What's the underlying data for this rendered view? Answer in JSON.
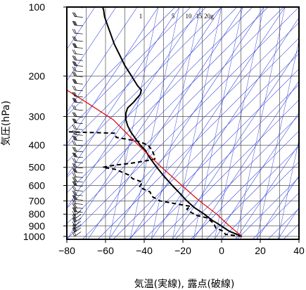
{
  "chart_data": {
    "type": "line",
    "xlabel": "気温(実線), 露点(破線)",
    "ylabel": "気圧(hPa)",
    "xlim": [
      -80,
      40
    ],
    "ylim": [
      1030,
      100
    ],
    "y_scale": "log",
    "grid": true,
    "x_ticks": [
      "−80",
      "−60",
      "−40",
      "−20",
      "0",
      "20",
      "40"
    ],
    "x_tick_values": [
      -80,
      -60,
      -40,
      -20,
      0,
      20,
      40
    ],
    "y_ticks": [
      "100",
      "200",
      "300",
      "400",
      "500",
      "600",
      "700",
      "800",
      "900",
      "1000"
    ],
    "y_tick_values": [
      100,
      200,
      300,
      400,
      500,
      600,
      700,
      800,
      900,
      1000
    ],
    "mixing_ratio_labels": [
      "1",
      "5",
      "10",
      "15",
      "20g"
    ],
    "colors": {
      "temperature": "#000000",
      "dewpoint": "#000000",
      "parcel": "#e00000",
      "adiabats": "#3344dd",
      "grid": "#333333",
      "wind_barbs": "#000000"
    },
    "series": [
      {
        "name": "気温",
        "style": "solid",
        "points": [
          [
            10.5,
            1000
          ],
          [
            4.0,
            950
          ],
          [
            1.5,
            920
          ],
          [
            -2.0,
            880
          ],
          [
            -5.0,
            850
          ],
          [
            -9.0,
            800
          ],
          [
            -14.0,
            750
          ],
          [
            -18.0,
            700
          ],
          [
            -21.5,
            650
          ],
          [
            -25.5,
            600
          ],
          [
            -29.5,
            550
          ],
          [
            -33.5,
            500
          ],
          [
            -37.5,
            450
          ],
          [
            -39.5,
            420
          ],
          [
            -42.0,
            400
          ],
          [
            -45.0,
            370
          ],
          [
            -47.0,
            350
          ],
          [
            -48.5,
            330
          ],
          [
            -49.5,
            310
          ],
          [
            -49.5,
            290
          ],
          [
            -48.5,
            275
          ],
          [
            -45.5,
            260
          ],
          [
            -42.0,
            240
          ],
          [
            -41.5,
            230
          ],
          [
            -43.5,
            220
          ],
          [
            -46.5,
            200
          ],
          [
            -50.0,
            180
          ],
          [
            -53.0,
            160
          ],
          [
            -55.5,
            145
          ],
          [
            -57.5,
            130
          ],
          [
            -59.0,
            120
          ],
          [
            -60.5,
            110
          ],
          [
            -61.0,
            103
          ],
          [
            -61.5,
            100
          ]
        ]
      },
      {
        "name": "露点",
        "style": "dashed",
        "points": [
          [
            10.5,
            1000
          ],
          [
            2.0,
            980
          ],
          [
            1.0,
            950
          ],
          [
            -3.0,
            920
          ],
          [
            -4.0,
            880
          ],
          [
            -6.0,
            850
          ],
          [
            -7.5,
            830
          ],
          [
            -13.0,
            810
          ],
          [
            -16.5,
            780
          ],
          [
            -18.0,
            760
          ],
          [
            -16.0,
            740
          ],
          [
            -24.0,
            720
          ],
          [
            -32.0,
            700
          ],
          [
            -36.0,
            670
          ],
          [
            -37.0,
            640
          ],
          [
            -42.5,
            610
          ],
          [
            -41.0,
            580
          ],
          [
            -46.0,
            560
          ],
          [
            -48.0,
            540
          ],
          [
            -55.0,
            510
          ],
          [
            -61.5,
            500
          ],
          [
            -56.0,
            490
          ],
          [
            -47.0,
            480
          ],
          [
            -40.0,
            470
          ],
          [
            -34.5,
            460
          ],
          [
            -35.0,
            440
          ],
          [
            -36.0,
            420
          ],
          [
            -38.0,
            400
          ],
          [
            -43.0,
            385
          ],
          [
            -54.5,
            370
          ],
          [
            -55.0,
            355
          ],
          [
            -79.0,
            350
          ]
        ]
      },
      {
        "name": "parcel",
        "style": "solid",
        "points": [
          [
            10.5,
            1000
          ],
          [
            4.0,
            900
          ],
          [
            -2.5,
            800
          ],
          [
            -11.5,
            700
          ],
          [
            -20.5,
            600
          ],
          [
            -31.0,
            500
          ],
          [
            -43.0,
            400
          ],
          [
            -56.0,
            310
          ],
          [
            -70.0,
            260
          ],
          [
            -80.0,
            230
          ]
        ]
      }
    ],
    "wind_barb_levels": [
      100,
      110,
      120,
      130,
      140,
      150,
      160,
      170,
      180,
      190,
      200,
      215,
      230,
      245,
      260,
      280,
      300,
      320,
      340,
      360,
      380,
      400,
      425,
      450,
      475,
      500,
      525,
      550,
      575,
      600,
      630,
      660,
      690,
      720,
      750,
      780,
      810,
      840,
      870,
      900,
      930,
      960,
      1000
    ]
  }
}
